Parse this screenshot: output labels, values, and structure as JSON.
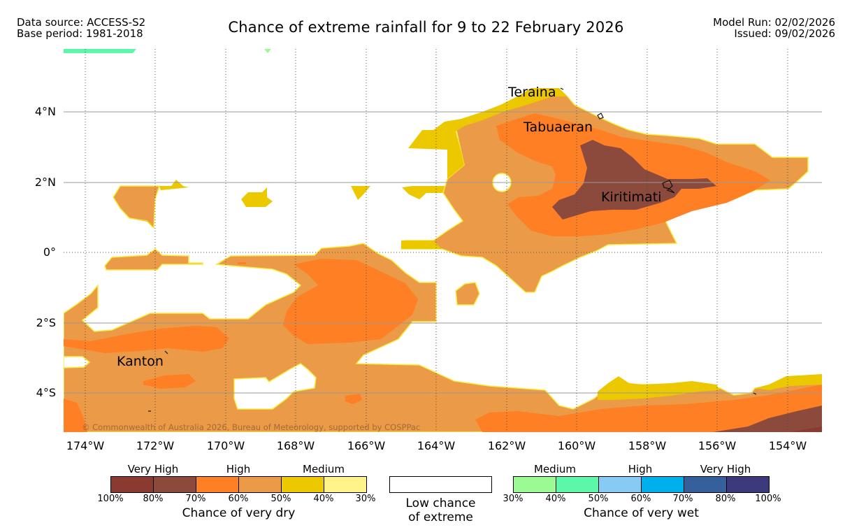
{
  "header": {
    "source_line1": "Data source: ACCESS-S2",
    "source_line2": "Base period: 1981-2018",
    "title": "Chance of extreme rainfall for 9 to 22 February 2026",
    "model_run": "Model Run: 02/02/2026",
    "issued": "Issued: 09/02/2026"
  },
  "map": {
    "y_ticks": [
      "4°N",
      "2°N",
      "0°",
      "2°S",
      "4°S"
    ],
    "x_ticks": [
      "174°W",
      "172°W",
      "170°W",
      "168°W",
      "166°W",
      "164°W",
      "162°W",
      "160°W",
      "158°W",
      "156°W",
      "154°W"
    ],
    "places": [
      "Teraina",
      "Tabuaeran",
      "Kiritimati",
      "Kanton"
    ],
    "copyright": "© Commonwealth of Australia 2026, Bureau of Meteorology, supported by COSPPac",
    "colors": {
      "very_high_dry": "#8b4a3c",
      "high_dry": "#ff7f24",
      "high_dry_lower": "#eb9a47",
      "medium_dry": "#ecc800",
      "medium_dry_edge": "#f7ed40",
      "medium_wet": "#5cf7a8",
      "ocean": "#ffffff"
    }
  },
  "legend": {
    "dry": {
      "categories": [
        "Very High",
        "High",
        "Medium"
      ],
      "ticks": [
        "100%",
        "80%",
        "70%",
        "60%",
        "50%",
        "40%",
        "30%"
      ],
      "colors": [
        "#8b3a32",
        "#8b4a3c",
        "#ff7f24",
        "#eb9a47",
        "#ecc800",
        "#fff38a"
      ],
      "title": "Chance of very dry"
    },
    "low": {
      "line1": "Low chance",
      "line2": "of extreme"
    },
    "wet": {
      "categories": [
        "Medium",
        "High",
        "Very High"
      ],
      "ticks": [
        "30%",
        "40%",
        "50%",
        "60%",
        "70%",
        "80%",
        "100%"
      ],
      "colors": [
        "#9cfa94",
        "#5cf7a8",
        "#87cbf5",
        "#00b0ec",
        "#36609c",
        "#3c3a7c"
      ],
      "title": "Chance of very wet"
    }
  }
}
